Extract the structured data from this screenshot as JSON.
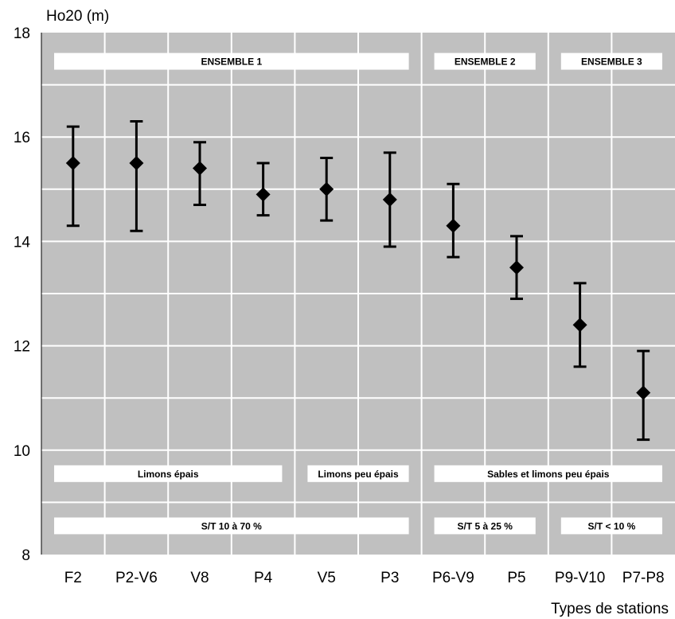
{
  "chart_data": {
    "type": "errorbar",
    "title": "",
    "ylabel": "Ho20 (m)",
    "xlabel": "Types de stations",
    "ylim": [
      8,
      18
    ],
    "yticks": [
      "8",
      "10",
      "12",
      "14",
      "16",
      "18"
    ],
    "grid": true,
    "categories": [
      "F2",
      "P2-V6",
      "V8",
      "P4",
      "V5",
      "P3",
      "P6-V9",
      "P5",
      "P9-V10",
      "P7-P8"
    ],
    "mean": [
      15.5,
      15.5,
      15.4,
      14.9,
      15.0,
      14.8,
      14.3,
      13.5,
      12.4,
      11.1
    ],
    "low": [
      14.3,
      14.2,
      14.7,
      14.5,
      14.4,
      13.9,
      13.7,
      12.9,
      11.6,
      10.2
    ],
    "high": [
      16.2,
      16.3,
      15.9,
      15.5,
      15.6,
      15.7,
      15.1,
      14.1,
      13.2,
      11.9
    ],
    "colors": {
      "plot_background": "#c0c0c0",
      "grid": "#ffffff",
      "marker": "#000000",
      "band": "#ffffff"
    },
    "bands": [
      {
        "text": "ENSEMBLE 1",
        "from": 0,
        "to": 5,
        "row": "top"
      },
      {
        "text": "ENSEMBLE 2",
        "from": 6,
        "to": 7,
        "row": "top"
      },
      {
        "text": "ENSEMBLE 3",
        "from": 8,
        "to": 9,
        "row": "top"
      },
      {
        "text": "Limons épais",
        "from": 0,
        "to": 3,
        "row": "middle"
      },
      {
        "text": "Limons peu épais",
        "from": 4,
        "to": 5,
        "row": "middle"
      },
      {
        "text": "Sables et limons peu épais",
        "from": 6,
        "to": 9,
        "row": "middle"
      },
      {
        "text": "S/T 10 à 70 %",
        "from": 0,
        "to": 5,
        "row": "bottom"
      },
      {
        "text": "S/T 5 à 25 %",
        "from": 6,
        "to": 7,
        "row": "bottom"
      },
      {
        "text": "S/T < 10 %",
        "from": 8,
        "to": 9,
        "row": "bottom"
      }
    ]
  }
}
